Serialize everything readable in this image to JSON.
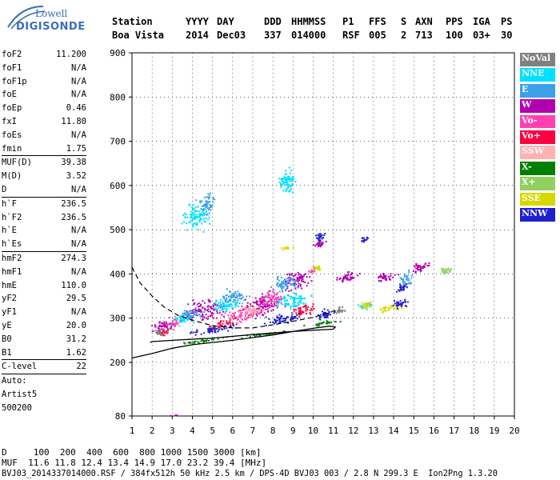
{
  "logo": {
    "line1": "Lowell",
    "line2": "DIGISONDE"
  },
  "header": {
    "line1": [
      "Station",
      "YYYY",
      "DAY",
      "DDD",
      "HHMMSS",
      "P1",
      "FFS",
      "S",
      "AXN",
      "PPS",
      "IGA",
      "PS"
    ],
    "line2": [
      "Boa Vista",
      "2014",
      "Dec03",
      "337",
      "014000",
      "RSF",
      "005",
      "2",
      "713",
      "100",
      "03+",
      "30"
    ]
  },
  "params": [
    {
      "k": "foF2",
      "v": "11.200"
    },
    {
      "k": "foF1",
      "v": "N/A"
    },
    {
      "k": "foF1p",
      "v": "N/A"
    },
    {
      "k": "foE",
      "v": "N/A"
    },
    {
      "k": "foEp",
      "v": "0.46"
    },
    {
      "k": "fxI",
      "v": "11.80"
    },
    {
      "k": "foEs",
      "v": "N/A"
    },
    {
      "k": "fmin",
      "v": "1.75"
    },
    {
      "k": "MUF(D)",
      "v": "39.38",
      "div": true
    },
    {
      "k": "M(D)",
      "v": "3.52"
    },
    {
      "k": "D",
      "v": "N/A"
    },
    {
      "k": "h`F",
      "v": "236.5",
      "div": true
    },
    {
      "k": "h`F2",
      "v": "236.5"
    },
    {
      "k": "h`E",
      "v": "N/A"
    },
    {
      "k": "h`Es",
      "v": "N/A"
    },
    {
      "k": "hmF2",
      "v": "274.3",
      "div": true
    },
    {
      "k": "hmF1",
      "v": "N/A"
    },
    {
      "k": "hmE",
      "v": "110.0"
    },
    {
      "k": "yF2",
      "v": "29.5"
    },
    {
      "k": "yF1",
      "v": "N/A"
    },
    {
      "k": "yE",
      "v": "20.0"
    },
    {
      "k": "B0",
      "v": "31.2"
    },
    {
      "k": "B1",
      "v": "1.62"
    },
    {
      "k": "C-level",
      "v": "22",
      "div": true
    },
    {
      "k": "Auto:",
      "v": "",
      "div": true
    },
    {
      "k": "Artist5",
      "v": ""
    },
    {
      "k": "500200",
      "v": ""
    }
  ],
  "legend": [
    {
      "label": "NoVal",
      "color": "#808080"
    },
    {
      "label": "NNE",
      "color": "#00e0ff"
    },
    {
      "label": "E",
      "color": "#3ca0e8"
    },
    {
      "label": "W",
      "color": "#b000b0"
    },
    {
      "label": "Vo-",
      "color": "#ff40b0"
    },
    {
      "label": "Vo+",
      "color": "#ff0040"
    },
    {
      "label": "SSW",
      "color": "#ffb0b0"
    },
    {
      "label": "X-",
      "color": "#008000"
    },
    {
      "label": "X+",
      "color": "#90d060"
    },
    {
      "label": "SSE",
      "color": "#d8d800"
    },
    {
      "label": "NNW",
      "color": "#2020d0"
    }
  ],
  "footer": {
    "line1": "D     100  200  400  600  800 1000 1500 3000 [km]",
    "line2": "MUF  11.6 11.8 12.4 13.4 14.9 17.0 23.2 39.4 [MHz]",
    "line3": "BVJ03_2014337014000.RSF / 384fx512h 50 kHz 2.5 km / DPS-4D BVJ03 003 / 2.8 N 299.3 E  Ion2Png 1.3.20"
  },
  "chart_data": {
    "type": "scatter",
    "x_ticks": [
      "1",
      "2",
      "3",
      "4",
      "5",
      "6",
      "7",
      "8",
      "9",
      "10",
      "11",
      "12",
      "13",
      "14",
      "15",
      "16",
      "17",
      "18",
      "19",
      "20"
    ],
    "y_ticks": [
      "80",
      "200",
      "300",
      "400",
      "500",
      "600",
      "700",
      "800",
      "900"
    ],
    "xlim": [
      1,
      20
    ],
    "ylim": [
      80,
      900
    ],
    "grid": true,
    "series": [
      {
        "name": "W",
        "color": "#b000b0",
        "clusters": [
          [
            2.6,
            285,
            0.9,
            18
          ],
          [
            4.6,
            320,
            1.4,
            30
          ],
          [
            7.5,
            330,
            1.3,
            35
          ],
          [
            9.2,
            390,
            0.9,
            30
          ],
          [
            11.6,
            395,
            0.9,
            15
          ],
          [
            13.6,
            395,
            0.8,
            14
          ],
          [
            15.2,
            415,
            0.8,
            14
          ],
          [
            2.7,
            80,
            0.8,
            3
          ],
          [
            10.3,
            470,
            0.4,
            12
          ]
        ]
      },
      {
        "name": "Vo-",
        "color": "#ff40b0",
        "clusters": [
          [
            3.0,
            290,
            0.8,
            14
          ],
          [
            6.5,
            310,
            1.2,
            25
          ],
          [
            8.0,
            345,
            1.0,
            28
          ],
          [
            9.9,
            410,
            0.3,
            10
          ]
        ]
      },
      {
        "name": "Vo+",
        "color": "#ff0040",
        "clusters": [
          [
            2.5,
            270,
            0.6,
            10
          ],
          [
            5.5,
            290,
            1.0,
            14
          ],
          [
            9.5,
            320,
            1.0,
            18
          ]
        ]
      },
      {
        "name": "NNE",
        "color": "#00e0ff",
        "clusters": [
          [
            3.5,
            300,
            0.9,
            15
          ],
          [
            5.6,
            330,
            1.1,
            20
          ],
          [
            9.0,
            340,
            1.3,
            25
          ],
          [
            4.2,
            530,
            1.1,
            40
          ],
          [
            8.7,
            610,
            0.7,
            40
          ],
          [
            12.6,
            330,
            0.5,
            10
          ]
        ]
      },
      {
        "name": "E",
        "color": "#3ca0e8",
        "clusters": [
          [
            3.8,
            310,
            1.0,
            14
          ],
          [
            6.0,
            350,
            1.1,
            20
          ],
          [
            8.6,
            380,
            1.0,
            25
          ],
          [
            4.7,
            560,
            0.7,
            30
          ],
          [
            14.6,
            390,
            0.5,
            20
          ]
        ]
      },
      {
        "name": "X-",
        "color": "#008000",
        "clusters": [
          [
            4.5,
            250,
            2.0,
            4
          ],
          [
            7.5,
            265,
            2.0,
            4
          ],
          [
            10.5,
            290,
            1.2,
            5
          ]
        ]
      },
      {
        "name": "SSE",
        "color": "#d8d800",
        "clusters": [
          [
            12.6,
            330,
            0.5,
            10
          ],
          [
            13.8,
            325,
            0.9,
            10
          ],
          [
            8.6,
            460,
            0.5,
            4
          ],
          [
            10.2,
            415,
            0.4,
            8
          ]
        ]
      },
      {
        "name": "NNW",
        "color": "#2020d0",
        "clusters": [
          [
            5.0,
            275,
            1.8,
            10
          ],
          [
            8.5,
            300,
            1.5,
            14
          ],
          [
            10.6,
            310,
            0.7,
            14
          ],
          [
            14.3,
            335,
            0.6,
            14
          ],
          [
            10.3,
            485,
            0.4,
            14
          ],
          [
            12.5,
            480,
            0.3,
            8
          ],
          [
            14.4,
            370,
            0.4,
            14
          ]
        ]
      },
      {
        "name": "NoVal",
        "color": "#808080",
        "clusters": [
          [
            2.3,
            270,
            0.4,
            10
          ],
          [
            11.3,
            320,
            0.4,
            10
          ]
        ]
      },
      {
        "name": "X+",
        "color": "#90d060",
        "clusters": [
          [
            16.6,
            410,
            0.6,
            10
          ]
        ]
      },
      {
        "name": "SSW",
        "color": "#ffb0b0",
        "clusters": [
          [
            7.0,
            320,
            1.0,
            15
          ]
        ]
      }
    ],
    "profile_solid": {
      "x": [
        1.0,
        2.0,
        3.0,
        4.0,
        5.0,
        6.0,
        7.0,
        8.0,
        9.0,
        10.0,
        10.8,
        11.1,
        11.0,
        10.5,
        9.0,
        7.0,
        5.0,
        3.0,
        2.0,
        1.9
      ],
      "y": [
        210,
        220,
        232,
        240,
        245,
        250,
        256,
        262,
        270,
        277,
        282,
        280,
        275,
        274,
        270,
        263,
        255,
        250,
        247,
        245
      ]
    },
    "profile_dashed": {
      "x": [
        1.0,
        1.4,
        2.0,
        2.6,
        3.3,
        4.2,
        5.0,
        6.0,
        7.0,
        8.0,
        9.0,
        10.0,
        10.8,
        11.2
      ],
      "y": [
        415,
        380,
        350,
        325,
        306,
        293,
        283,
        278,
        278,
        285,
        293,
        302,
        312,
        320
      ]
    }
  }
}
